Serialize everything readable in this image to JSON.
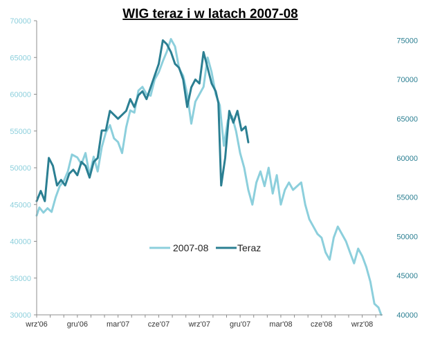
{
  "chart_data": {
    "type": "line",
    "title": "WIG teraz i w latach 2007-08",
    "xlabel": "",
    "ylabel_left": "",
    "ylabel_right": "",
    "legend_position": "center",
    "grid": false,
    "x_ticks": [
      "wrz'06",
      "gru'06",
      "mar'07",
      "cze'07",
      "wrz'07",
      "gru'07",
      "mar'08",
      "cze'08",
      "wrz'08"
    ],
    "x_range": [
      0,
      25.5
    ],
    "y_left": {
      "range": [
        30000,
        70000
      ],
      "ticks": [
        30000,
        35000,
        40000,
        45000,
        50000,
        55000,
        60000,
        65000,
        70000
      ]
    },
    "y_right": {
      "range": [
        40000,
        77500
      ],
      "ticks": [
        40000,
        45000,
        50000,
        55000,
        60000,
        65000,
        70000,
        75000
      ]
    },
    "series": [
      {
        "name": "2007-08",
        "axis": "left",
        "color": "#8ccfdc",
        "x": [
          0,
          0.2,
          0.5,
          0.8,
          1.1,
          1.4,
          1.7,
          2.0,
          2.3,
          2.6,
          3.0,
          3.3,
          3.6,
          3.9,
          4.2,
          4.5,
          4.8,
          5.1,
          5.4,
          5.7,
          6.0,
          6.3,
          6.6,
          6.9,
          7.2,
          7.5,
          7.8,
          8.1,
          8.4,
          8.7,
          9.0,
          9.3,
          9.6,
          9.9,
          10.2,
          10.5,
          10.8,
          11.1,
          11.4,
          11.7,
          12.0,
          12.3,
          12.6,
          12.9,
          13.2,
          13.5,
          13.8,
          14.1,
          14.4,
          14.7,
          15.0,
          15.3,
          15.6,
          15.9,
          16.2,
          16.5,
          16.8,
          17.1,
          17.4,
          17.7,
          18.0,
          18.3,
          18.6,
          18.9,
          19.2,
          19.5,
          19.8,
          20.1,
          20.4,
          20.7,
          21.0,
          21.3,
          21.6,
          21.9,
          22.2,
          22.5,
          22.8,
          23.1,
          23.4,
          23.7,
          24.0,
          24.3,
          24.6,
          24.9,
          25.2,
          25.4
        ],
        "values": [
          43500,
          44600,
          43900,
          44500,
          44000,
          46000,
          47500,
          48200,
          49500,
          51800,
          51400,
          50500,
          52000,
          49000,
          51500,
          49500,
          52800,
          54800,
          55800,
          54000,
          53500,
          52000,
          55500,
          57800,
          57500,
          60500,
          61000,
          60000,
          59800,
          62000,
          63000,
          64500,
          65800,
          67500,
          66500,
          63500,
          62500,
          60000,
          56000,
          59000,
          60000,
          61000,
          65000,
          63000,
          60000,
          58500,
          53000,
          56500,
          57000,
          55000,
          52000,
          50000,
          47000,
          45000,
          48000,
          49500,
          47500,
          50000,
          46500,
          49000,
          45000,
          47000,
          48000,
          47000,
          47500,
          48000,
          45000,
          43000,
          42000,
          41000,
          40500,
          38500,
          37500,
          40500,
          42000,
          41000,
          40000,
          38500,
          37000,
          39000,
          38000,
          36500,
          34500,
          31500,
          31000,
          30000
        ]
      },
      {
        "name": "Teraz",
        "axis": "right",
        "color": "#2b7f92",
        "x": [
          0,
          0.3,
          0.6,
          0.9,
          1.2,
          1.5,
          1.8,
          2.1,
          2.4,
          2.7,
          3.0,
          3.3,
          3.6,
          3.9,
          4.2,
          4.5,
          4.8,
          5.1,
          5.4,
          5.7,
          6.0,
          6.3,
          6.6,
          6.9,
          7.2,
          7.5,
          7.8,
          8.1,
          8.4,
          8.7,
          9.0,
          9.3,
          9.6,
          9.9,
          10.2,
          10.5,
          10.8,
          11.1,
          11.4,
          11.7,
          12.0,
          12.3,
          12.6,
          12.9,
          13.2,
          13.4,
          13.6,
          13.9,
          14.2,
          14.5,
          14.8,
          15.1,
          15.4,
          15.6
        ],
        "values": [
          54500,
          55800,
          54500,
          60000,
          59000,
          56500,
          57200,
          56500,
          58000,
          58500,
          57800,
          59500,
          59000,
          57500,
          59500,
          60000,
          63500,
          63500,
          66000,
          65500,
          65000,
          65500,
          66000,
          67500,
          66500,
          68000,
          68500,
          67500,
          69000,
          70500,
          72000,
          75000,
          74500,
          73500,
          72000,
          71500,
          70000,
          66500,
          69000,
          70000,
          69500,
          73500,
          71500,
          69500,
          68500,
          67000,
          56500,
          60000,
          66000,
          64500,
          66000,
          63500,
          64000,
          62000
        ]
      }
    ]
  }
}
